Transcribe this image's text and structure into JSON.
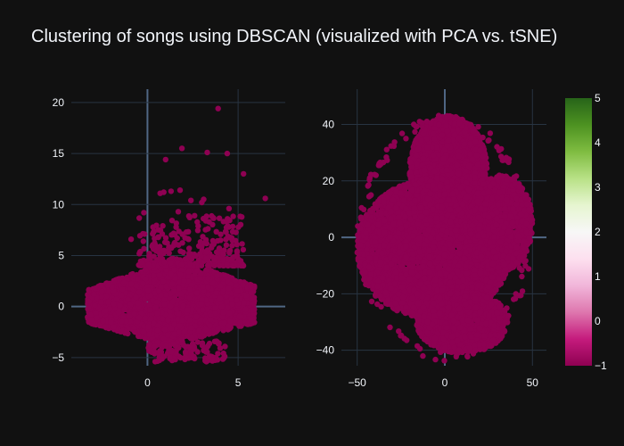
{
  "title": "Clustering of songs using DBSCAN (visualized with PCA vs. tSNE)",
  "chart_data": [
    {
      "type": "scatter",
      "name": "PCA",
      "xlim": [
        -4.2,
        7.6
      ],
      "ylim": [
        -5.8,
        21.3
      ],
      "xticks": [
        0,
        5
      ],
      "yticks": [
        -5,
        0,
        5,
        10,
        15,
        20
      ],
      "grid": true,
      "marker_color": "#8e0152",
      "cluster_label": -1,
      "outliers": [
        [
          3.9,
          19.4
        ],
        [
          1.0,
          14.4
        ],
        [
          1.9,
          15.5
        ],
        [
          3.3,
          15.1
        ],
        [
          4.4,
          15.0
        ],
        [
          5.3,
          13.0
        ],
        [
          6.5,
          10.6
        ],
        [
          0.7,
          11.1
        ],
        [
          0.9,
          11.2
        ],
        [
          1.3,
          11.3
        ],
        [
          1.8,
          11.4
        ],
        [
          2.4,
          10.4
        ],
        [
          3.0,
          10.2
        ],
        [
          3.1,
          10.5
        ],
        [
          4.5,
          9.6
        ],
        [
          -0.2,
          9.2
        ],
        [
          1.7,
          9.3
        ],
        [
          2.6,
          8.9
        ],
        [
          3.4,
          8.3
        ],
        [
          -0.9,
          6.6
        ]
      ]
    },
    {
      "type": "scatter",
      "name": "tSNE",
      "xlim": [
        -59,
        58
      ],
      "ylim": [
        -45.5,
        52.5
      ],
      "xticks": [
        -50,
        0,
        50
      ],
      "yticks": [
        -40,
        -20,
        0,
        20,
        40
      ],
      "grid": true,
      "marker_color": "#8e0152",
      "cluster_label": -1
    }
  ],
  "colorbar": {
    "min": -1,
    "max": 5,
    "ticks": [
      -1,
      0,
      1,
      2,
      3,
      4,
      5
    ],
    "colors": [
      "#8e0152",
      "#c51b7d",
      "#de77ae",
      "#f1b6da",
      "#fde0ef",
      "#f7f7f7",
      "#e6f5d0",
      "#b8e186",
      "#7fbc41",
      "#4d9221",
      "#276419"
    ]
  }
}
